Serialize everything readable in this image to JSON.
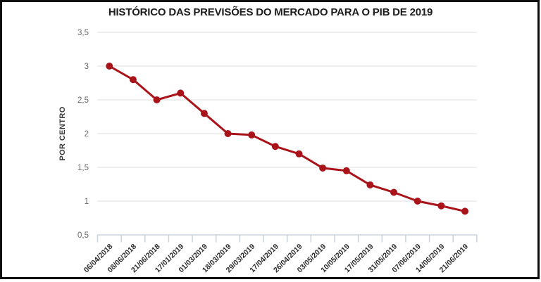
{
  "chart_data": {
    "type": "line",
    "title": "HISTÓRICO DAS PREVISÕES DO MERCADO PARA O PIB DE 2019",
    "ylabel": "POR CENTRO",
    "xlabel": "",
    "categories": [
      "06/04/2018",
      "08/06/2018",
      "21/06/2018",
      "17/01/2019",
      "01/03/2019",
      "18/03/2019",
      "29/03/2019",
      "17/04/2019",
      "26/04/2019",
      "03/05/2019",
      "10/05/2019",
      "17/05/2019",
      "31/05/2019",
      "07/06/2019",
      "14/06/2019",
      "21/06/2019"
    ],
    "values": [
      3.0,
      2.8,
      2.5,
      2.6,
      2.3,
      2.0,
      1.98,
      1.81,
      1.7,
      1.49,
      1.45,
      1.24,
      1.13,
      1.0,
      0.93,
      0.85
    ],
    "ylim": [
      0.5,
      3.5
    ],
    "yticks": [
      {
        "value": 3.5,
        "label": "3,5"
      },
      {
        "value": 3.0,
        "label": "3"
      },
      {
        "value": 2.5,
        "label": "2,5"
      },
      {
        "value": 2.0,
        "label": "2"
      },
      {
        "value": 1.5,
        "label": "1,5"
      },
      {
        "value": 1.0,
        "label": "1"
      },
      {
        "value": 0.5,
        "label": "0,5"
      }
    ],
    "grid": "horizontal",
    "legend": "none",
    "colors": {
      "line": "#a9141b",
      "point": "#a9141b",
      "grid": "#e9e9e9",
      "axis": "#c9d3de",
      "title": "#1c1c1c",
      "y_tick_label": "#6a6a6a",
      "x_tick_label": "#2d2d2d",
      "y_axis_title": "#3a3a3a",
      "border": "#0c0c0c",
      "background": "#ffffff"
    }
  }
}
